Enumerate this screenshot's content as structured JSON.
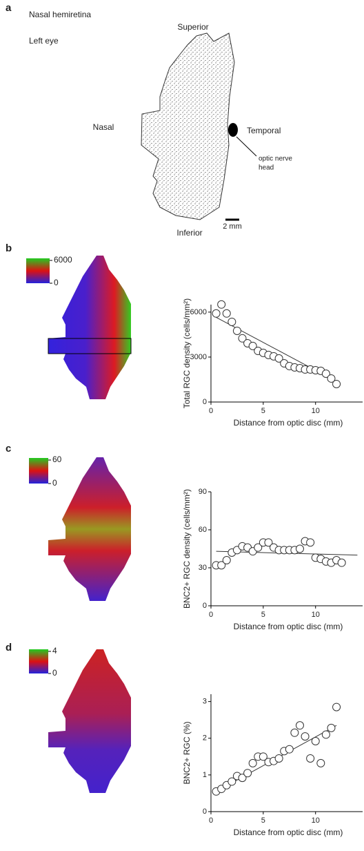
{
  "panel_a": {
    "label": "a",
    "title": "Nasal hemiretina",
    "subtitle": "Left eye",
    "superior": "Superior",
    "nasal": "Nasal",
    "temporal": "Temporal",
    "inferior": "Inferior",
    "optic_nerve_head": [
      "optic nerve",
      "head"
    ],
    "scale_bar": "2 mm"
  },
  "chart_data": [
    {
      "type": "scatter",
      "label": "b",
      "colorbar_ticks": [
        6000,
        0
      ],
      "ylabel": "Total RGC density (cells/mm²)",
      "xlabel": "Distance from optic disc (mm)",
      "x": [
        0.5,
        1,
        1.5,
        2,
        2.5,
        3,
        3.5,
        4,
        4.5,
        5,
        5.5,
        6,
        6.5,
        7,
        7.5,
        8,
        8.5,
        9,
        9.5,
        10,
        10.5,
        11,
        11.5,
        12
      ],
      "values": [
        5910,
        6510,
        5910,
        5350,
        4750,
        4250,
        3920,
        3740,
        3410,
        3280,
        3140,
        3050,
        2910,
        2580,
        2400,
        2310,
        2260,
        2170,
        2170,
        2120,
        2080,
        1890,
        1570,
        1200
      ],
      "fit": {
        "x": [
          0.5,
          12.2
        ],
        "y": [
          5650,
          1300
        ]
      },
      "xlim": [
        0,
        14.5
      ],
      "ylim": [
        0,
        6500
      ],
      "xticks": [
        0,
        5,
        10
      ],
      "yticks": [
        0,
        3000,
        6000
      ]
    },
    {
      "type": "scatter",
      "label": "c",
      "colorbar_ticks": [
        60,
        0
      ],
      "ylabel": "BNC2+ RGC density (cells/mm²)",
      "xlabel": "Distance from optic disc (mm)",
      "x": [
        0.5,
        1,
        1.5,
        2,
        2.5,
        3,
        3.5,
        4,
        4.5,
        5,
        5.5,
        6,
        6.5,
        7,
        7.5,
        8,
        8.5,
        9,
        9.5,
        10,
        10.5,
        11,
        11.5,
        12,
        12.5
      ],
      "values": [
        32,
        32,
        36,
        42,
        44,
        47,
        46,
        43,
        46,
        50,
        50,
        46,
        44,
        44,
        44,
        44,
        45,
        51,
        50,
        38,
        37,
        35,
        34,
        36,
        34
      ],
      "fit": {
        "x": [
          0.5,
          14
        ],
        "y": [
          43,
          40
        ]
      },
      "xlim": [
        0,
        14.5
      ],
      "ylim": [
        0,
        90
      ],
      "xticks": [
        0,
        5,
        10
      ],
      "yticks": [
        0,
        30,
        60,
        90
      ]
    },
    {
      "type": "scatter",
      "label": "d",
      "colorbar_ticks": [
        4,
        0
      ],
      "ylabel": "BNC2+ RGC (%)",
      "xlabel": "Distance from optic disc (mm)",
      "x": [
        0.5,
        1,
        1.5,
        2,
        2.5,
        3,
        3.5,
        4,
        4.5,
        5,
        5.5,
        6,
        6.5,
        7,
        7.5,
        8,
        8.5,
        9,
        9.5,
        10,
        10.5,
        11,
        11.5,
        12
      ],
      "values": [
        0.55,
        0.62,
        0.72,
        0.82,
        0.97,
        0.92,
        1.05,
        1.32,
        1.5,
        1.5,
        1.35,
        1.38,
        1.45,
        1.65,
        1.7,
        2.15,
        2.35,
        2.05,
        1.45,
        1.92,
        1.32,
        2.1,
        2.28,
        2.85
      ],
      "fit": {
        "x": [
          0.5,
          12
        ],
        "y": [
          0.55,
          2.35
        ]
      },
      "xlim": [
        0,
        14.5
      ],
      "ylim": [
        0,
        3.2
      ],
      "xticks": [
        0,
        5,
        10
      ],
      "yticks": [
        0,
        1,
        2,
        3
      ]
    }
  ]
}
